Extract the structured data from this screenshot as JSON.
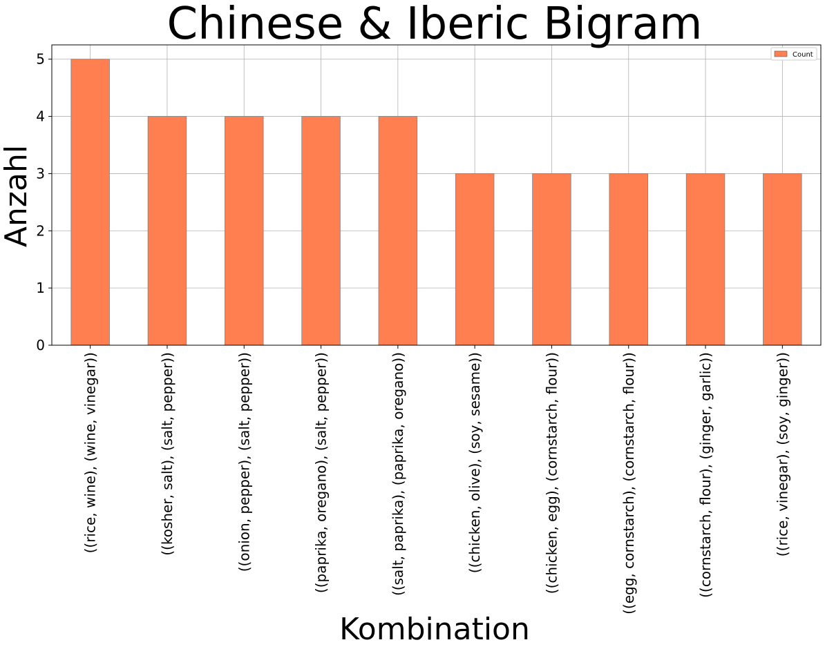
{
  "chart_data": {
    "type": "bar",
    "title": "Chinese & Iberic Bigram",
    "xlabel": "Kombination",
    "ylabel": "Anzahl",
    "categories": [
      "((rice, wine), (wine, vinegar))",
      "((kosher, salt), (salt, pepper))",
      "((onion, pepper), (salt, pepper))",
      "((paprika, oregano), (salt, pepper))",
      "((salt, paprika), (paprika, oregano))",
      "((chicken, olive), (soy, sesame))",
      "((chicken, egg), (cornstarch, flour))",
      "((egg, cornstarch), (cornstarch, flour))",
      "((cornstarch, flour), (ginger, garlic))",
      "((rice, vinegar), (soy, ginger))"
    ],
    "series": [
      {
        "name": "Count",
        "values": [
          5,
          4,
          4,
          4,
          4,
          3,
          3,
          3,
          3,
          3
        ],
        "color": "#FF7F50"
      }
    ],
    "yticks": [
      "0",
      "1",
      "2",
      "3",
      "4",
      "5"
    ],
    "ylim": [
      0,
      5.25
    ],
    "grid": true,
    "legend_position": "top-right"
  }
}
